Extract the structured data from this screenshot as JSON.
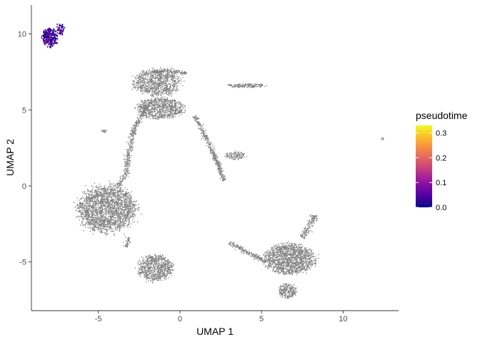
{
  "chart_data": {
    "type": "scatter",
    "xlabel": "UMAP 1",
    "ylabel": "UMAP 2",
    "xlim": [
      -9.1,
      13.4
    ],
    "ylim": [
      -8.2,
      11.9
    ],
    "x_ticks": [
      -5,
      0,
      5,
      10
    ],
    "y_ticks": [
      -5,
      0,
      5,
      10
    ],
    "x_tick_labels": [
      "-5",
      "0",
      "5",
      "10"
    ],
    "y_tick_labels": [
      "-5",
      "0",
      "5",
      "10"
    ],
    "grid": false,
    "legend": {
      "title": "pseudotime",
      "placement": "right",
      "range": [
        0.0,
        0.33
      ],
      "ticks": [
        0.0,
        0.1,
        0.2,
        0.3
      ],
      "tick_labels": [
        "0.0",
        "0.1",
        "0.2",
        "0.3"
      ],
      "colormap": [
        "#0d0887",
        "#5c01a6",
        "#9c179e",
        "#cc4778",
        "#ed7953",
        "#fdb42f",
        "#f0f921"
      ]
    },
    "na_color": "#7f7f7f",
    "clusters": [
      {
        "pseudotime": "colored",
        "cx": -7.95,
        "cy": 9.75,
        "rx": 0.55,
        "ry": 0.7,
        "n": 260
      },
      {
        "pseudotime": "colored",
        "cx": -7.35,
        "cy": 10.3,
        "rx": 0.3,
        "ry": 0.4,
        "n": 50
      },
      {
        "pseudotime": "NA",
        "cx": -1.4,
        "cy": 6.8,
        "rx": 1.6,
        "ry": 0.95,
        "n": 900
      },
      {
        "pseudotime": "NA",
        "cx": -1.2,
        "cy": 5.1,
        "rx": 1.6,
        "ry": 0.75,
        "n": 800
      },
      {
        "pseudotime": "NA",
        "cx": -4.5,
        "cy": -1.5,
        "rx": 2.0,
        "ry": 1.7,
        "n": 2100
      },
      {
        "pseudotime": "NA",
        "cx": -1.5,
        "cy": -5.4,
        "rx": 1.2,
        "ry": 0.95,
        "n": 750
      },
      {
        "pseudotime": "NA",
        "cx": 6.7,
        "cy": -4.8,
        "rx": 1.7,
        "ry": 1.1,
        "n": 1400
      },
      {
        "pseudotime": "NA",
        "cx": 6.6,
        "cy": -6.9,
        "rx": 0.6,
        "ry": 0.55,
        "n": 220
      },
      {
        "pseudotime": "NA",
        "cx": 4.1,
        "cy": 6.6,
        "rx": 1.3,
        "ry": 0.15,
        "n": 160
      },
      {
        "pseudotime": "NA",
        "cx": 3.4,
        "cy": 2.0,
        "rx": 0.7,
        "ry": 0.3,
        "n": 120
      },
      {
        "pseudotime": "NA",
        "cx": -4.6,
        "cy": 3.6,
        "rx": 0.25,
        "ry": 0.1,
        "n": 15
      },
      {
        "pseudotime": "NA",
        "cx": 12.4,
        "cy": 3.1,
        "rx": 0.1,
        "ry": 0.1,
        "n": 8
      }
    ],
    "paths": [
      {
        "pseudotime": "NA",
        "points": [
          [
            -2.0,
            5.2
          ],
          [
            -2.8,
            3.8
          ],
          [
            -3.1,
            2.3
          ],
          [
            -3.3,
            0.8
          ],
          [
            -3.9,
            -0.1
          ]
        ],
        "width": 0.18,
        "n": 420
      },
      {
        "pseudotime": "NA",
        "points": [
          [
            0.9,
            4.6
          ],
          [
            1.5,
            3.4
          ],
          [
            2.0,
            2.3
          ],
          [
            2.4,
            1.2
          ],
          [
            2.7,
            0.3
          ]
        ],
        "width": 0.16,
        "n": 360
      },
      {
        "pseudotime": "NA",
        "points": [
          [
            -3.1,
            -3.4
          ],
          [
            -3.3,
            -4.0
          ]
        ],
        "width": 0.15,
        "n": 40
      },
      {
        "pseudotime": "NA",
        "points": [
          [
            3.0,
            -3.7
          ],
          [
            4.2,
            -4.4
          ],
          [
            5.3,
            -5.0
          ]
        ],
        "width": 0.15,
        "n": 200
      },
      {
        "pseudotime": "NA",
        "points": [
          [
            7.5,
            -3.4
          ],
          [
            8.1,
            -2.3
          ],
          [
            8.3,
            -1.9
          ]
        ],
        "width": 0.2,
        "n": 150
      },
      {
        "pseudotime": "NA",
        "points": [
          [
            -1.7,
            7.5
          ],
          [
            -0.7,
            7.6
          ],
          [
            0.4,
            7.4
          ]
        ],
        "width": 0.15,
        "n": 150
      }
    ]
  }
}
